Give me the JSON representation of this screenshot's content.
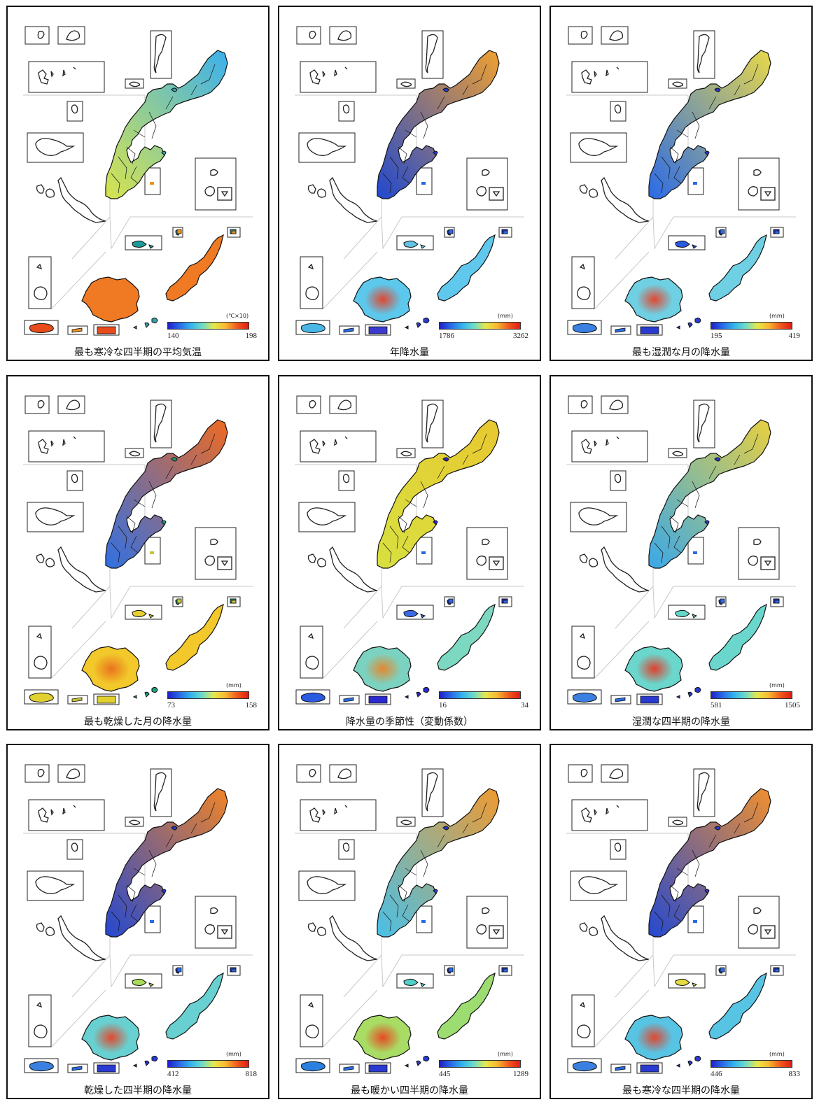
{
  "colors": {
    "scale": [
      "#1f1fc8",
      "#2a6ae8",
      "#34b4ec",
      "#6fdcc8",
      "#e6e84a",
      "#f8b830",
      "#f05a1c",
      "#e01c14"
    ]
  },
  "panels": [
    {
      "caption": "最も寒冷な四半期の平均気温",
      "unit": "(℃×10)",
      "min": "140",
      "max": "198",
      "colors": {
        "main_n": "#3cb0ec",
        "main_s": "#d8e44e",
        "yaeyama": "#f07a24",
        "ishigaki_center": "#f07a24",
        "miyako": "#f07a24",
        "daito": "#e84c1c",
        "kume": "#1f9a9a",
        "yonaguni": "#e84c1c",
        "minor": "#3c9ea8",
        "smallbox": "#e8921c"
      }
    },
    {
      "caption": "年降水量",
      "unit": "(mm)",
      "min": "1786",
      "max": "3262",
      "colors": {
        "main_n": "#f0a030",
        "main_s": "#2048d0",
        "yaeyama": "#5cc8ec",
        "ishigaki_center": "#ee3a1c",
        "miyako": "#60c8ec",
        "daito": "#3a3ad0",
        "kume": "#62c4e4",
        "yonaguni": "#4ab6e6",
        "minor": "#2a3ad0",
        "smallbox": "#2a6ae8"
      }
    },
    {
      "caption": "最も湿潤な月の降水量",
      "unit": "(mm)",
      "min": "195",
      "max": "419",
      "colors": {
        "main_n": "#e8d84a",
        "main_s": "#2a6ae8",
        "yaeyama": "#6fd0e4",
        "ishigaki_center": "#ee3a1c",
        "miyako": "#6fd0e4",
        "daito": "#2a3ad0",
        "kume": "#2a5ae0",
        "yonaguni": "#3a80e0",
        "minor": "#2a3ad0",
        "smallbox": "#2a6ae8"
      }
    },
    {
      "caption": "最も乾燥した月の降水量",
      "unit": "(mm)",
      "min": "73",
      "max": "158",
      "colors": {
        "main_n": "#ee6a22",
        "main_s": "#3070e4",
        "yaeyama": "#f2c82a",
        "ishigaki_center": "#e86a1c",
        "miyako": "#f2c82a",
        "daito": "#e0d030",
        "kume": "#e6d034",
        "yonaguni": "#e0d030",
        "minor": "#1e9e7a",
        "smallbox": "#c8c23a"
      }
    },
    {
      "caption": "降水量の季節性（変動係数）",
      "unit": "",
      "min": "16",
      "max": "34",
      "colors": {
        "main_n": "#e8c830",
        "main_s": "#d8e040",
        "yaeyama": "#7cd2c0",
        "ishigaki_center": "#f08020",
        "miyako": "#7cd8c0",
        "daito": "#2a2ad0",
        "kume": "#3a6ae8",
        "yonaguni": "#2a5ae0",
        "minor": "#2a2ad0",
        "smallbox": "#2a6ae8"
      }
    },
    {
      "caption": "湿潤な四半期の降水量",
      "unit": "(mm)",
      "min": "581",
      "max": "1505",
      "colors": {
        "main_n": "#e8d040",
        "main_s": "#3aa8e8",
        "yaeyama": "#6ad6cc",
        "ishigaki_center": "#ee2e1a",
        "miyako": "#6ad6cc",
        "daito": "#2a3ad0",
        "kume": "#62d8c8",
        "yonaguni": "#3a80e0",
        "minor": "#2a3ad0",
        "smallbox": "#2a6ae8"
      }
    },
    {
      "caption": "乾燥した四半期の降水量",
      "unit": "(mm)",
      "min": "412",
      "max": "818",
      "colors": {
        "main_n": "#f08428",
        "main_s": "#2448d0",
        "yaeyama": "#68d0d0",
        "ishigaki_center": "#ee3a1c",
        "miyako": "#68d0d0",
        "daito": "#2a3ad0",
        "kume": "#a8dc58",
        "yonaguni": "#3a80e0",
        "minor": "#2a3ad0",
        "smallbox": "#2a6ae8"
      }
    },
    {
      "caption": "最も暖かい四半期の降水量",
      "unit": "(mm)",
      "min": "445",
      "max": "1289",
      "colors": {
        "main_n": "#f09a30",
        "main_s": "#48c0e8",
        "yaeyama": "#a8dc64",
        "ishigaki_center": "#ee3a1c",
        "miyako": "#9cdc70",
        "daito": "#2a3ad0",
        "kume": "#50d0c8",
        "yonaguni": "#2a80e0",
        "minor": "#2a3ad0",
        "smallbox": "#2a6ae8"
      }
    },
    {
      "caption": "最も寒冷な四半期の降水量",
      "unit": "(mm)",
      "min": "446",
      "max": "833",
      "colors": {
        "main_n": "#f09030",
        "main_s": "#2448d0",
        "yaeyama": "#58c4e4",
        "ishigaki_center": "#ee3a1c",
        "miyako": "#58c4e4",
        "daito": "#2a3ad0",
        "kume": "#e6dc40",
        "yonaguni": "#3a80e0",
        "minor": "#2a3ad0",
        "smallbox": "#2a6ae8"
      }
    }
  ]
}
